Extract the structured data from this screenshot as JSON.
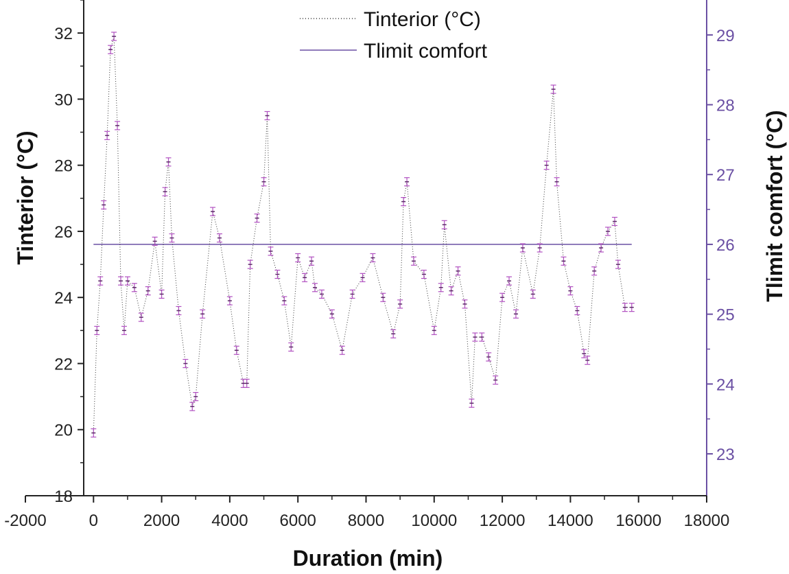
{
  "chart_data": {
    "type": "line",
    "title": "",
    "xlabel": "Duration (min)",
    "ylabel": "Tinterior (°C)",
    "y2label": "Tlimit comfort (°C)",
    "xlim": [
      -2000,
      18000
    ],
    "ylim": [
      18,
      33
    ],
    "y2lim": [
      22.4,
      29.5
    ],
    "x_ticks": [
      -2000,
      0,
      2000,
      4000,
      6000,
      8000,
      10000,
      12000,
      14000,
      16000,
      18000
    ],
    "x_tick_labels": [
      "-2000",
      "0",
      "2000",
      "4000",
      "6000",
      "8000",
      "10000",
      "12000",
      "14000",
      "16000",
      "18000"
    ],
    "y_ticks": [
      18,
      20,
      22,
      24,
      26,
      28,
      30,
      32
    ],
    "y_tick_labels": [
      "18",
      "20",
      "22",
      "24",
      "26",
      "28",
      "30",
      "32"
    ],
    "y2_ticks": [
      23,
      24,
      25,
      26,
      27,
      28,
      29
    ],
    "y2_tick_labels": [
      "23",
      "24",
      "25",
      "26",
      "27",
      "28",
      "29"
    ],
    "legend_position": "top-center",
    "colors": {
      "interior": "#b04fc0",
      "interior_line": "#333333",
      "comfort": "#6a4fa3",
      "axis": "#222222",
      "right_axis": "#6a4fa3"
    },
    "series": [
      {
        "name": "Tinterior (°C)",
        "style": "dotted-with-error-bars",
        "x": [
          0,
          100,
          200,
          300,
          400,
          500,
          600,
          700,
          800,
          900,
          1000,
          1200,
          1400,
          1600,
          1800,
          2000,
          2100,
          2200,
          2300,
          2500,
          2700,
          2900,
          3000,
          3200,
          3500,
          3700,
          4000,
          4200,
          4400,
          4500,
          4600,
          4800,
          5000,
          5100,
          5200,
          5400,
          5600,
          5800,
          6000,
          6200,
          6400,
          6500,
          6700,
          7000,
          7300,
          7600,
          7900,
          8200,
          8500,
          8800,
          9000,
          9100,
          9200,
          9400,
          9700,
          10000,
          10200,
          10300,
          10500,
          10700,
          10900,
          11100,
          11200,
          11400,
          11600,
          11800,
          12000,
          12200,
          12400,
          12600,
          12900,
          13100,
          13300,
          13500,
          13600,
          13800,
          14000,
          14200,
          14400,
          14500,
          14700,
          14900,
          15100,
          15300,
          15400,
          15600,
          15800
        ],
        "y": [
          19.9,
          23.0,
          24.5,
          26.8,
          28.9,
          31.5,
          31.9,
          29.2,
          24.5,
          23.0,
          24.5,
          24.3,
          23.4,
          24.2,
          25.7,
          24.1,
          27.2,
          28.1,
          25.8,
          23.6,
          22.0,
          20.7,
          21.0,
          23.5,
          26.6,
          25.8,
          23.9,
          22.4,
          21.4,
          21.4,
          25.0,
          26.4,
          27.5,
          29.5,
          25.4,
          24.7,
          23.9,
          22.5,
          25.2,
          24.6,
          25.1,
          24.3,
          24.1,
          23.5,
          22.4,
          24.1,
          24.6,
          25.2,
          24.0,
          22.9,
          23.8,
          26.9,
          27.5,
          25.1,
          24.7,
          23.0,
          24.3,
          26.2,
          24.2,
          24.8,
          23.8,
          20.8,
          22.8,
          22.8,
          22.2,
          21.5,
          24.0,
          24.5,
          23.5,
          25.5,
          24.1,
          25.5,
          28.0,
          30.3,
          27.5,
          25.1,
          24.2,
          23.6,
          22.3,
          22.1,
          24.8,
          25.5,
          26.0,
          26.3,
          25.0,
          23.7,
          23.7
        ]
      },
      {
        "name": "Tlimit comfort",
        "axis": "right",
        "x": [
          0,
          15800
        ],
        "y": [
          26.0,
          26.0
        ]
      }
    ]
  }
}
